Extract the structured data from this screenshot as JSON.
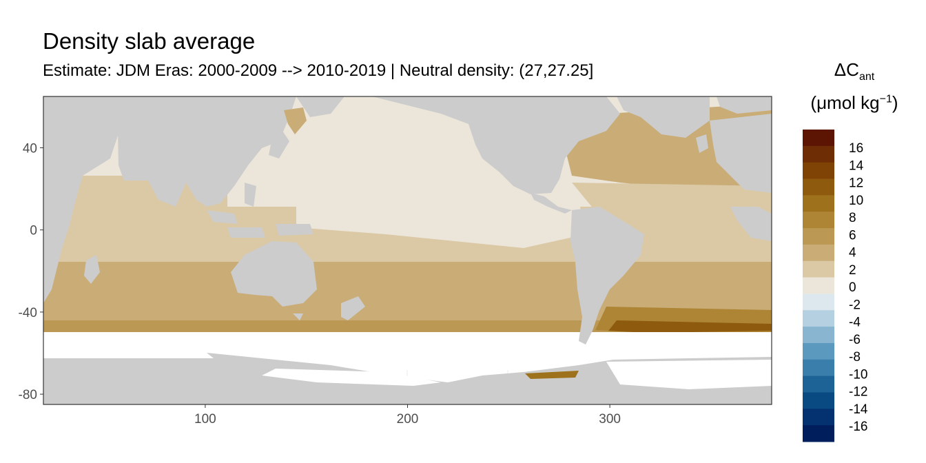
{
  "title": "Density slab average",
  "subtitle": "Estimate: JDM Eras: 2000-2009 --> 2010-2019 | Neutral density: (27,27.25]",
  "legend": {
    "title_symbol": "ΔC",
    "title_subscript": "ant",
    "unit_prefix": "(μmol kg",
    "unit_superscript": "−1",
    "unit_suffix": ")",
    "bins": [
      {
        "label": "16",
        "color": "#5c1503"
      },
      {
        "label": "14",
        "color": "#6e2d05"
      },
      {
        "label": "",
        "color": "#7f4306"
      },
      {
        "label": "12",
        "color": "#8d5a0e"
      },
      {
        "label": "10",
        "color": "#9e721d"
      },
      {
        "label": "",
        "color": "#ad8535"
      },
      {
        "label": "8",
        "color": "#bb9853"
      },
      {
        "label": "6",
        "color": "#c9ac76"
      },
      {
        "label": "4",
        "color": "#dbc9a5"
      },
      {
        "label": "2",
        "color": "#ece6da"
      },
      {
        "label": "0",
        "color": "#dde8ee"
      },
      {
        "label": "-2",
        "color": "#b4d0e1"
      },
      {
        "label": "-4",
        "color": "#89b5d0"
      },
      {
        "label": "-6",
        "color": "#5b99bf"
      },
      {
        "label": "-8",
        "color": "#3a7fab"
      },
      {
        "label": "-10",
        "color": "#1d6396"
      },
      {
        "label": "-12",
        "color": "#094a82"
      },
      {
        "label": "-14",
        "color": "#04316f"
      },
      {
        "label": "-16",
        "color": "#001d5c"
      }
    ]
  },
  "chart_data": {
    "type": "heatmap",
    "title": "Density slab average",
    "subtitle": "Estimate: JDM Eras: 2000-2009 --> 2010-2019 | Neutral density: (27,27.25]",
    "xlabel": "",
    "ylabel": "",
    "xlim": [
      20,
      380
    ],
    "ylim": [
      -85,
      65
    ],
    "x_ticks": [
      100,
      200,
      300
    ],
    "y_ticks": [
      40,
      0,
      -40,
      -80
    ],
    "grid": true,
    "legend_position": "right",
    "colorscale": "diverging brown-blue, -16 to 16",
    "zones": [
      {
        "region": "North Pacific",
        "value": 1
      },
      {
        "region": "Tropical Pacific",
        "value": 3
      },
      {
        "region": "Indian Ocean north",
        "value": 3
      },
      {
        "region": "North Atlantic",
        "value": 5
      },
      {
        "region": "Tropical Atlantic",
        "value": 3
      },
      {
        "region": "Southern Hemisphere mid-latitudes",
        "value": 5
      },
      {
        "region": "Southern Ocean band",
        "value": 7
      },
      {
        "region": "South Atlantic southern band",
        "value": 11
      }
    ]
  }
}
